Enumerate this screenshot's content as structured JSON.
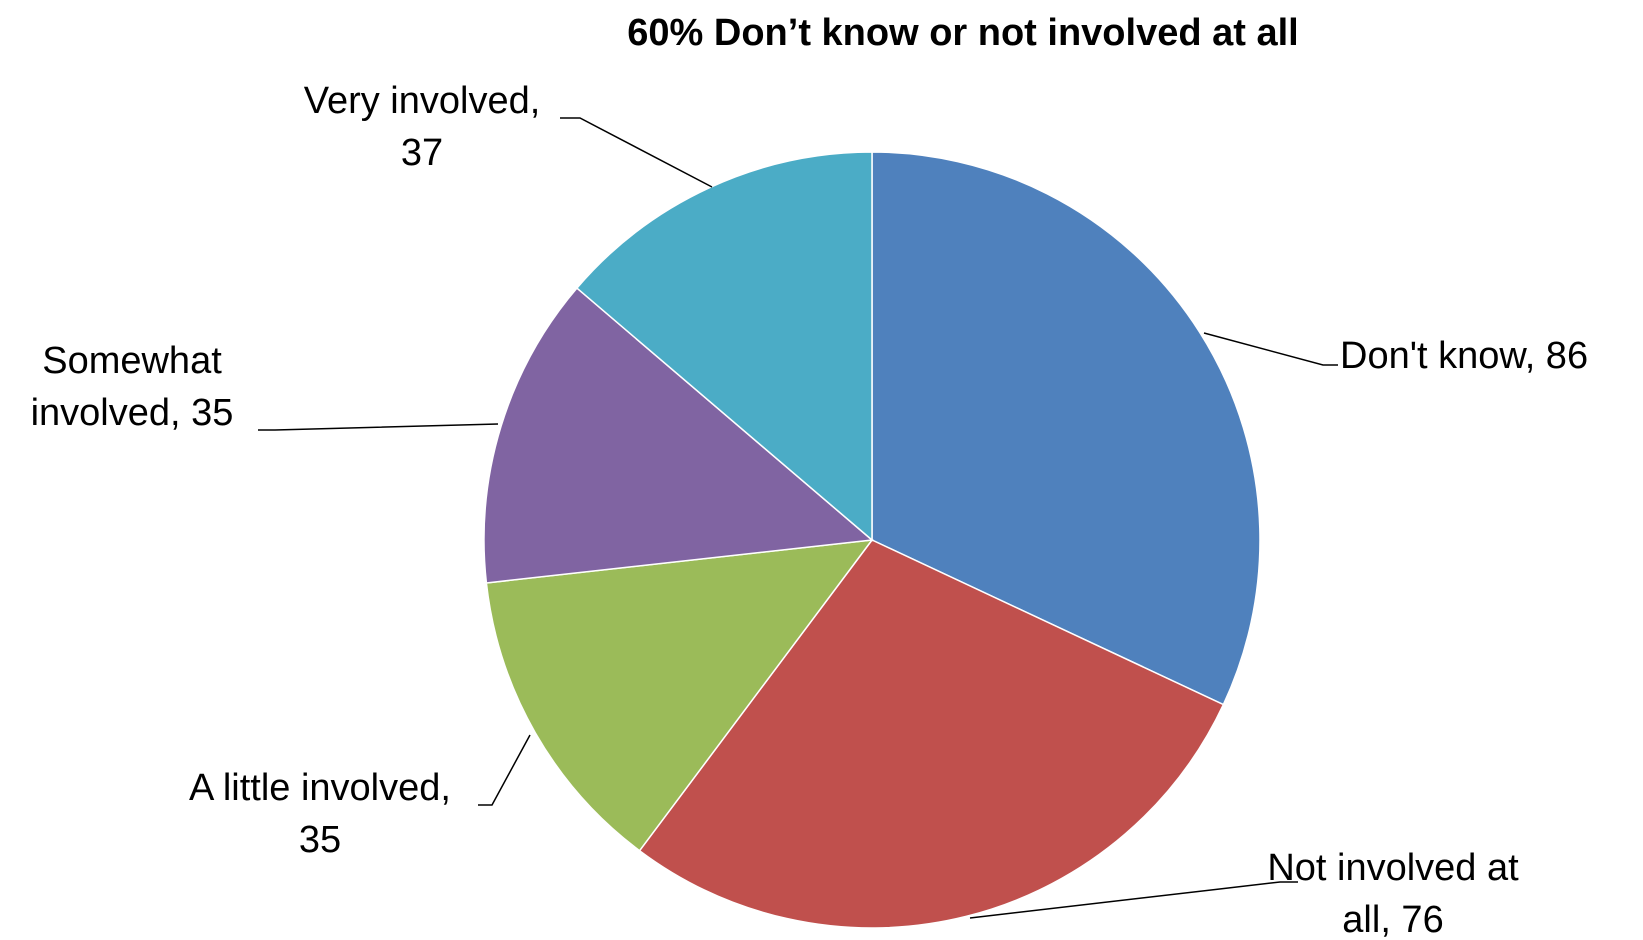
{
  "chart_data": {
    "type": "pie",
    "title": "60% Don’t know or not involved at all",
    "categories": [
      "Don't know",
      "Not involved at all",
      "A little involved",
      "Somewhat involved",
      "Very involved"
    ],
    "values": [
      86,
      76,
      35,
      35,
      37
    ],
    "colors": [
      "#4F81BD",
      "#C0504D",
      "#9BBB59",
      "#8064A2",
      "#4BACC6"
    ],
    "data_labels": [
      [
        "Don't know, 86"
      ],
      [
        "Not involved at",
        "all, 76"
      ],
      [
        "A little involved,",
        "35"
      ],
      [
        "Somewhat",
        "involved, 35"
      ],
      [
        "Very involved,",
        "37"
      ]
    ],
    "start_angle": "12 o'clock",
    "direction": "clockwise",
    "legend": "none"
  }
}
